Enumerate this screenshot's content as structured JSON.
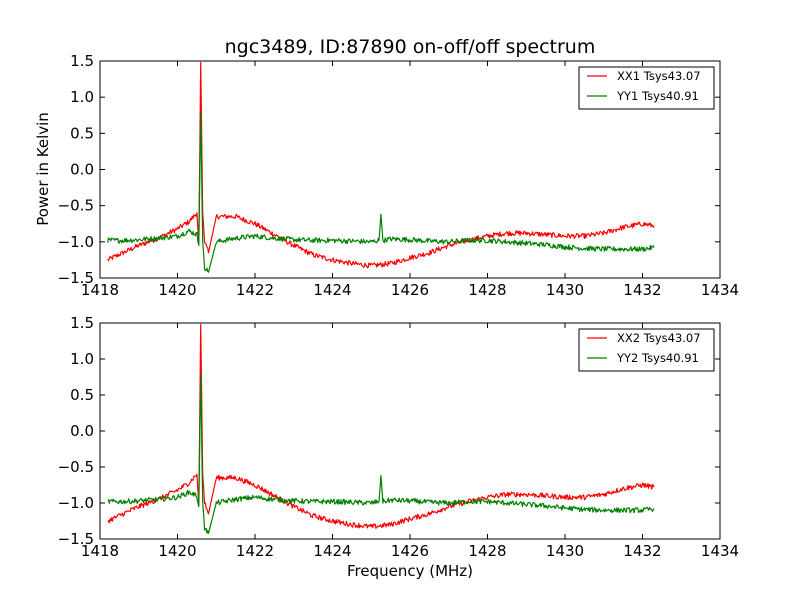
{
  "chart_data": [
    {
      "type": "line",
      "title": "ngc3489, ID:87890 on-off/off spectrum",
      "xlabel": "",
      "ylabel": "Power in Kelvin",
      "xlim": [
        1418,
        1434
      ],
      "ylim": [
        -1.5,
        1.5
      ],
      "xticks": [
        "1418",
        "1420",
        "1422",
        "1424",
        "1426",
        "1428",
        "1430",
        "1432",
        "1434"
      ],
      "yticks": [
        "1.5",
        "1.0",
        "0.5",
        "0.0",
        "−0.5",
        "−1.0",
        "−1.5"
      ],
      "legend_position": "top-right",
      "series": [
        {
          "name": "XX1 Tsys43.07",
          "color": "#ff0000",
          "x": [
            1418.2,
            1418.6,
            1419.0,
            1419.5,
            1420.0,
            1420.3,
            1420.5,
            1420.55,
            1420.6,
            1420.65,
            1420.7,
            1420.8,
            1421.0,
            1421.5,
            1422.0,
            1422.5,
            1423.0,
            1423.5,
            1424.0,
            1424.5,
            1425.0,
            1425.5,
            1426.0,
            1426.5,
            1427.0,
            1427.5,
            1428.0,
            1428.5,
            1429.0,
            1429.5,
            1430.0,
            1430.5,
            1431.0,
            1431.5,
            1432.0,
            1432.3
          ],
          "y": [
            -1.25,
            -1.15,
            -1.05,
            -0.95,
            -0.82,
            -0.72,
            -0.6,
            -1.0,
            1.48,
            -0.6,
            -1.0,
            -1.15,
            -0.65,
            -0.65,
            -0.75,
            -0.9,
            -1.05,
            -1.18,
            -1.25,
            -1.3,
            -1.33,
            -1.3,
            -1.22,
            -1.15,
            -1.05,
            -0.98,
            -0.92,
            -0.88,
            -0.88,
            -0.9,
            -0.92,
            -0.92,
            -0.88,
            -0.8,
            -0.75,
            -0.78
          ]
        },
        {
          "name": "YY1 Tsys40.91",
          "color": "#008000",
          "x": [
            1418.2,
            1418.6,
            1419.0,
            1419.5,
            1420.0,
            1420.3,
            1420.5,
            1420.55,
            1420.6,
            1420.65,
            1420.7,
            1420.8,
            1421.0,
            1421.5,
            1422.0,
            1422.5,
            1423.0,
            1423.5,
            1424.0,
            1424.5,
            1425.0,
            1425.2,
            1425.25,
            1425.3,
            1425.5,
            1426.0,
            1426.5,
            1427.0,
            1427.5,
            1428.0,
            1428.5,
            1429.0,
            1429.5,
            1430.0,
            1430.5,
            1431.0,
            1431.5,
            1432.0,
            1432.3
          ],
          "y": [
            -0.98,
            -0.98,
            -0.97,
            -0.95,
            -0.92,
            -0.85,
            -0.9,
            -1.05,
            0.8,
            -1.0,
            -1.35,
            -1.42,
            -1.0,
            -0.95,
            -0.92,
            -0.95,
            -0.97,
            -0.98,
            -0.98,
            -0.99,
            -1.0,
            -0.98,
            -0.62,
            -0.98,
            -0.96,
            -0.97,
            -0.99,
            -1.0,
            -0.98,
            -0.98,
            -1.0,
            -1.02,
            -1.04,
            -1.07,
            -1.09,
            -1.1,
            -1.1,
            -1.1,
            -1.08
          ]
        }
      ]
    },
    {
      "type": "line",
      "title": "",
      "xlabel": "Frequency (MHz)",
      "ylabel": "",
      "xlim": [
        1418,
        1434
      ],
      "ylim": [
        -1.5,
        1.5
      ],
      "xticks": [
        "1418",
        "1420",
        "1422",
        "1424",
        "1426",
        "1428",
        "1430",
        "1432",
        "1434"
      ],
      "yticks": [
        "1.5",
        "1.0",
        "0.5",
        "0.0",
        "−0.5",
        "−1.0",
        "−1.5"
      ],
      "legend_position": "top-right",
      "series": [
        {
          "name": "XX2 Tsys43.07",
          "color": "#ff0000",
          "x": [
            1418.2,
            1418.6,
            1419.0,
            1419.5,
            1420.0,
            1420.3,
            1420.5,
            1420.55,
            1420.6,
            1420.65,
            1420.7,
            1420.8,
            1421.0,
            1421.5,
            1422.0,
            1422.5,
            1423.0,
            1423.5,
            1424.0,
            1424.5,
            1425.0,
            1425.5,
            1426.0,
            1426.5,
            1427.0,
            1427.5,
            1428.0,
            1428.5,
            1429.0,
            1429.5,
            1430.0,
            1430.5,
            1431.0,
            1431.5,
            1432.0,
            1432.3
          ],
          "y": [
            -1.25,
            -1.15,
            -1.05,
            -0.95,
            -0.82,
            -0.72,
            -0.6,
            -1.0,
            1.48,
            -0.6,
            -1.0,
            -1.15,
            -0.65,
            -0.65,
            -0.75,
            -0.9,
            -1.05,
            -1.18,
            -1.25,
            -1.3,
            -1.33,
            -1.3,
            -1.22,
            -1.15,
            -1.05,
            -0.98,
            -0.92,
            -0.88,
            -0.88,
            -0.9,
            -0.92,
            -0.92,
            -0.88,
            -0.8,
            -0.75,
            -0.78
          ]
        },
        {
          "name": "YY2 Tsys40.91",
          "color": "#008000",
          "x": [
            1418.2,
            1418.6,
            1419.0,
            1419.5,
            1420.0,
            1420.3,
            1420.5,
            1420.55,
            1420.6,
            1420.65,
            1420.7,
            1420.8,
            1421.0,
            1421.5,
            1422.0,
            1422.5,
            1423.0,
            1423.5,
            1424.0,
            1424.5,
            1425.0,
            1425.2,
            1425.25,
            1425.3,
            1425.5,
            1426.0,
            1426.5,
            1427.0,
            1427.5,
            1428.0,
            1428.5,
            1429.0,
            1429.5,
            1430.0,
            1430.5,
            1431.0,
            1431.5,
            1432.0,
            1432.3
          ],
          "y": [
            -0.98,
            -0.98,
            -0.97,
            -0.95,
            -0.92,
            -0.85,
            -0.9,
            -1.05,
            0.8,
            -1.0,
            -1.35,
            -1.42,
            -1.0,
            -0.95,
            -0.92,
            -0.95,
            -0.97,
            -0.98,
            -0.98,
            -0.99,
            -1.0,
            -0.98,
            -0.62,
            -0.98,
            -0.96,
            -0.97,
            -0.99,
            -1.0,
            -0.98,
            -0.98,
            -1.0,
            -1.02,
            -1.04,
            -1.07,
            -1.09,
            -1.1,
            -1.1,
            -1.1,
            -1.08
          ]
        }
      ]
    }
  ]
}
